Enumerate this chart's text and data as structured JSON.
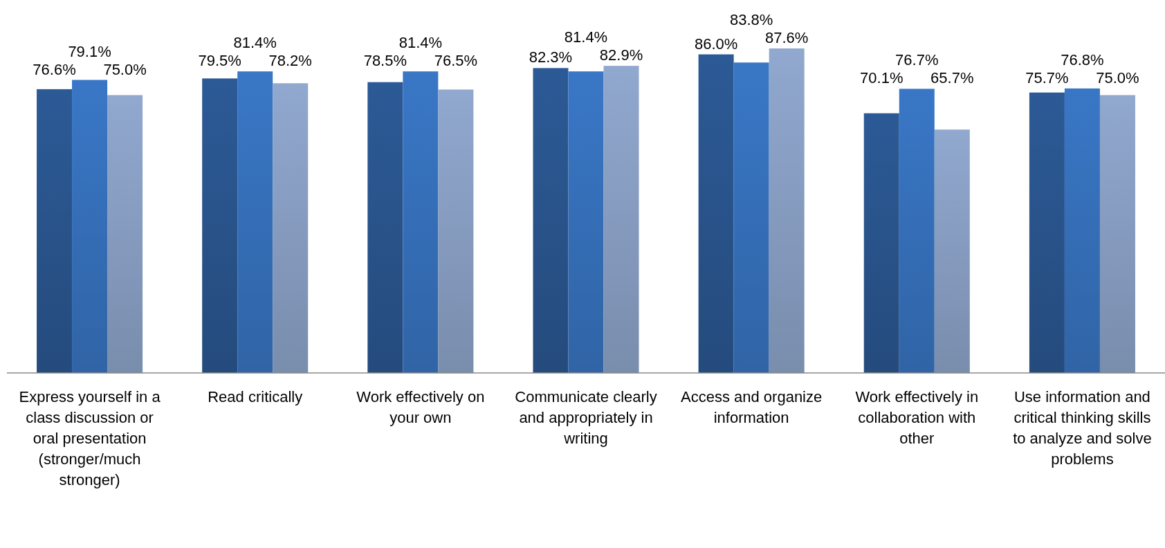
{
  "chart_data": {
    "type": "bar",
    "categories": [
      "Express yourself in a class discussion or oral presentation (stronger/much stronger)",
      "Read critically",
      "Work effectively on your own",
      "Communicate clearly and appropriately in writing",
      "Access and organize information",
      "Work effectively in collaboration with other",
      "Use information and critical thinking skills to analyze and solve problems"
    ],
    "series": [
      {
        "color": "#2c5a96",
        "values": [
          76.6,
          79.5,
          78.5,
          82.3,
          86.0,
          70.1,
          75.7
        ],
        "value_labels": [
          "76.6%",
          "79.5%",
          "78.5%",
          "82.3%",
          "86.0%",
          "70.1%",
          "75.7%"
        ]
      },
      {
        "color": "#3977c6",
        "values": [
          79.1,
          81.4,
          81.4,
          81.4,
          83.8,
          76.7,
          76.8
        ],
        "value_labels": [
          "79.1%",
          "81.4%",
          "81.4%",
          "81.4%",
          "83.8%",
          "76.7%",
          "76.8%"
        ]
      },
      {
        "color": "#91a8cf",
        "values": [
          75.0,
          78.2,
          76.5,
          82.9,
          87.6,
          65.7,
          75.0
        ],
        "value_labels": [
          "75.0%",
          "78.2%",
          "76.5%",
          "82.9%",
          "87.6%",
          "65.7%",
          "75.0%"
        ]
      }
    ],
    "tick_labels": "x"
  }
}
